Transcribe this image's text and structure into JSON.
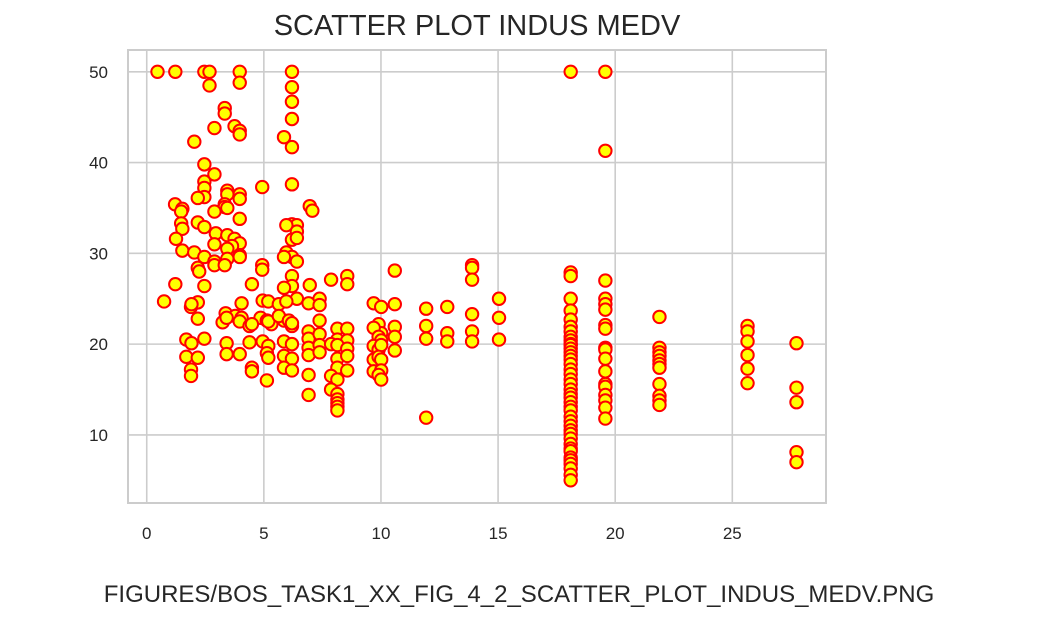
{
  "caption": "FIGURES/BOS_TASK1_XX_FIG_4_2_SCATTER_PLOT_INDUS_MEDV.PNG",
  "colors": {
    "marker_fill": "#ffff00",
    "marker_edge": "#ff0000",
    "grid": "#cccccc",
    "frame": "#cccccc",
    "text": "#262626"
  },
  "chart_data": {
    "type": "scatter",
    "title": "SCATTER PLOT INDUS MEDV",
    "xlabel": "",
    "ylabel": "",
    "xlim": [
      -0.8,
      29.0
    ],
    "ylim": [
      2.5,
      52.4
    ],
    "xticks": [
      0,
      5,
      10,
      15,
      20,
      25
    ],
    "yticks": [
      10,
      20,
      30,
      40,
      50
    ],
    "xtick_labels": [
      "0",
      "5",
      "10",
      "15",
      "20",
      "25"
    ],
    "ytick_labels": [
      "10",
      "20",
      "30",
      "40",
      "50"
    ],
    "grid": true,
    "legend": "none",
    "points": [
      [
        0.46,
        50.0
      ],
      [
        1.22,
        50.0
      ],
      [
        2.46,
        50.0
      ],
      [
        2.68,
        50.0
      ],
      [
        3.97,
        50.0
      ],
      [
        6.2,
        50.0
      ],
      [
        18.1,
        50.0
      ],
      [
        19.58,
        50.0
      ],
      [
        2.68,
        48.5
      ],
      [
        3.97,
        48.8
      ],
      [
        6.2,
        48.3
      ],
      [
        6.2,
        46.7
      ],
      [
        3.33,
        46.0
      ],
      [
        3.33,
        45.4
      ],
      [
        6.2,
        44.8
      ],
      [
        2.89,
        43.8
      ],
      [
        3.75,
        44.0
      ],
      [
        3.97,
        43.5
      ],
      [
        3.97,
        43.1
      ],
      [
        5.86,
        42.8
      ],
      [
        2.03,
        42.3
      ],
      [
        6.2,
        41.7
      ],
      [
        19.58,
        41.3
      ],
      [
        2.46,
        39.8
      ],
      [
        2.89,
        38.7
      ],
      [
        2.46,
        37.9
      ],
      [
        6.2,
        37.6
      ],
      [
        4.93,
        37.3
      ],
      [
        2.46,
        37.2
      ],
      [
        3.44,
        36.9
      ],
      [
        3.44,
        36.5
      ],
      [
        3.97,
        36.5
      ],
      [
        2.46,
        36.2
      ],
      [
        2.18,
        36.1
      ],
      [
        3.97,
        36.0
      ],
      [
        1.21,
        35.4
      ],
      [
        3.33,
        35.4
      ],
      [
        3.33,
        35.1
      ],
      [
        3.44,
        35.0
      ],
      [
        6.96,
        35.2
      ],
      [
        7.07,
        34.7
      ],
      [
        1.52,
        34.9
      ],
      [
        2.89,
        34.6
      ],
      [
        1.47,
        34.6
      ],
      [
        3.97,
        33.8
      ],
      [
        1.47,
        33.3
      ],
      [
        6.2,
        33.2
      ],
      [
        2.18,
        33.4
      ],
      [
        6.41,
        33.1
      ],
      [
        5.96,
        33.1
      ],
      [
        2.46,
        32.9
      ],
      [
        1.52,
        32.7
      ],
      [
        6.41,
        32.4
      ],
      [
        2.95,
        32.2
      ],
      [
        3.44,
        32.0
      ],
      [
        3.75,
        31.6
      ],
      [
        1.25,
        31.6
      ],
      [
        6.2,
        31.5
      ],
      [
        3.97,
        31.1
      ],
      [
        2.89,
        31.0
      ],
      [
        6.41,
        31.7
      ],
      [
        3.64,
        30.8
      ],
      [
        3.44,
        30.5
      ],
      [
        5.96,
        30.1
      ],
      [
        1.52,
        30.3
      ],
      [
        2.03,
        30.1
      ],
      [
        3.97,
        29.8
      ],
      [
        3.97,
        29.6
      ],
      [
        6.2,
        29.6
      ],
      [
        3.44,
        29.4
      ],
      [
        2.46,
        29.6
      ],
      [
        5.86,
        29.6
      ],
      [
        2.89,
        29.1
      ],
      [
        6.41,
        29.1
      ],
      [
        2.89,
        28.7
      ],
      [
        3.33,
        28.7
      ],
      [
        4.93,
        28.7
      ],
      [
        2.18,
        28.4
      ],
      [
        4.93,
        28.2
      ],
      [
        2.24,
        28.0
      ],
      [
        10.59,
        28.1
      ],
      [
        13.89,
        28.7
      ],
      [
        13.89,
        28.4
      ],
      [
        18.1,
        27.9
      ],
      [
        18.1,
        27.5
      ],
      [
        1.22,
        26.6
      ],
      [
        2.46,
        26.4
      ],
      [
        4.49,
        26.6
      ],
      [
        6.2,
        27.5
      ],
      [
        7.87,
        27.1
      ],
      [
        8.56,
        27.5
      ],
      [
        8.56,
        26.6
      ],
      [
        19.58,
        27.0
      ],
      [
        6.96,
        26.5
      ],
      [
        6.2,
        26.4
      ],
      [
        5.86,
        26.2
      ],
      [
        6.41,
        25.0
      ],
      [
        7.38,
        25.0
      ],
      [
        9.69,
        24.5
      ],
      [
        13.89,
        27.1
      ],
      [
        15.04,
        25.0
      ],
      [
        0.74,
        24.7
      ],
      [
        1.89,
        24.1
      ],
      [
        2.18,
        24.6
      ],
      [
        4.05,
        24.5
      ],
      [
        4.95,
        24.8
      ],
      [
        5.19,
        24.7
      ],
      [
        5.64,
        24.4
      ],
      [
        5.96,
        24.7
      ],
      [
        6.91,
        24.5
      ],
      [
        7.38,
        24.3
      ],
      [
        10.59,
        24.4
      ],
      [
        10.01,
        24.1
      ],
      [
        11.93,
        23.9
      ],
      [
        12.83,
        24.1
      ],
      [
        13.89,
        23.3
      ],
      [
        15.04,
        22.9
      ],
      [
        18.1,
        25.0
      ],
      [
        18.1,
        23.7
      ],
      [
        19.58,
        25.0
      ],
      [
        19.58,
        24.4
      ],
      [
        19.58,
        23.8
      ],
      [
        21.89,
        23.0
      ],
      [
        25.65,
        22.0
      ],
      [
        25.65,
        21.4
      ],
      [
        27.74,
        20.1
      ],
      [
        1.91,
        24.4
      ],
      [
        3.37,
        23.4
      ],
      [
        3.78,
        23.1
      ],
      [
        4.05,
        22.9
      ],
      [
        4.86,
        22.9
      ],
      [
        5.13,
        22.6
      ],
      [
        5.32,
        22.2
      ],
      [
        5.86,
        22.6
      ],
      [
        6.2,
        22.0
      ],
      [
        6.91,
        21.4
      ],
      [
        7.38,
        22.6
      ],
      [
        8.14,
        21.7
      ],
      [
        8.56,
        21.7
      ],
      [
        9.9,
        22.2
      ],
      [
        10.01,
        21.2
      ],
      [
        10.59,
        21.9
      ],
      [
        11.93,
        22.0
      ],
      [
        12.83,
        21.2
      ],
      [
        13.89,
        21.4
      ],
      [
        15.04,
        20.5
      ],
      [
        18.1,
        22.7
      ],
      [
        18.1,
        21.9
      ],
      [
        18.1,
        21.4
      ],
      [
        18.1,
        20.8
      ],
      [
        19.58,
        22.1
      ],
      [
        19.58,
        21.7
      ],
      [
        21.89,
        19.6
      ],
      [
        21.89,
        19.1
      ],
      [
        25.65,
        20.3
      ],
      [
        2.18,
        22.8
      ],
      [
        3.24,
        22.4
      ],
      [
        3.41,
        22.9
      ],
      [
        3.97,
        22.5
      ],
      [
        4.39,
        22.0
      ],
      [
        4.49,
        22.2
      ],
      [
        5.13,
        22.6
      ],
      [
        5.19,
        22.5
      ],
      [
        5.64,
        23.1
      ],
      [
        6.07,
        22.6
      ],
      [
        6.2,
        22.3
      ],
      [
        6.91,
        20.6
      ],
      [
        7.38,
        21.1
      ],
      [
        8.14,
        20.5
      ],
      [
        8.56,
        20.4
      ],
      [
        9.69,
        21.8
      ],
      [
        9.9,
        20.8
      ],
      [
        10.01,
        20.4
      ],
      [
        10.59,
        20.8
      ],
      [
        11.93,
        20.6
      ],
      [
        12.83,
        20.3
      ],
      [
        13.89,
        20.3
      ],
      [
        18.1,
        20.4
      ],
      [
        18.1,
        20.0
      ],
      [
        19.58,
        19.6
      ],
      [
        21.89,
        18.7
      ],
      [
        1.69,
        20.5
      ],
      [
        1.91,
        20.1
      ],
      [
        2.46,
        20.6
      ],
      [
        3.41,
        20.1
      ],
      [
        4.39,
        20.2
      ],
      [
        4.95,
        20.3
      ],
      [
        5.19,
        19.8
      ],
      [
        5.86,
        20.3
      ],
      [
        6.2,
        20.0
      ],
      [
        6.91,
        19.6
      ],
      [
        7.38,
        19.9
      ],
      [
        7.87,
        20.0
      ],
      [
        8.14,
        19.9
      ],
      [
        8.56,
        19.5
      ],
      [
        9.69,
        19.8
      ],
      [
        9.9,
        19.4
      ],
      [
        10.01,
        19.9
      ],
      [
        10.59,
        19.3
      ],
      [
        18.1,
        19.9
      ],
      [
        18.1,
        19.5
      ],
      [
        18.1,
        19.1
      ],
      [
        19.58,
        19.4
      ],
      [
        21.89,
        18.2
      ],
      [
        25.65,
        18.8
      ],
      [
        1.69,
        18.6
      ],
      [
        2.18,
        18.5
      ],
      [
        3.41,
        18.9
      ],
      [
        3.97,
        18.9
      ],
      [
        5.13,
        19.0
      ],
      [
        5.19,
        18.5
      ],
      [
        5.86,
        18.7
      ],
      [
        6.2,
        18.4
      ],
      [
        6.91,
        18.8
      ],
      [
        7.38,
        19.1
      ],
      [
        8.14,
        18.4
      ],
      [
        8.56,
        18.7
      ],
      [
        9.69,
        18.3
      ],
      [
        9.9,
        18.6
      ],
      [
        10.01,
        18.3
      ],
      [
        18.1,
        18.7
      ],
      [
        18.1,
        18.3
      ],
      [
        19.58,
        18.4
      ],
      [
        21.89,
        17.8
      ],
      [
        25.65,
        17.3
      ],
      [
        1.89,
        17.2
      ],
      [
        4.49,
        17.4
      ],
      [
        5.86,
        17.4
      ],
      [
        6.2,
        17.1
      ],
      [
        6.91,
        16.6
      ],
      [
        8.14,
        17.4
      ],
      [
        8.56,
        17.1
      ],
      [
        9.69,
        17.0
      ],
      [
        10.01,
        17.1
      ],
      [
        18.1,
        17.8
      ],
      [
        18.1,
        17.2
      ],
      [
        18.1,
        16.7
      ],
      [
        19.58,
        17.0
      ],
      [
        21.89,
        17.4
      ],
      [
        1.89,
        16.5
      ],
      [
        4.49,
        17.0
      ],
      [
        5.13,
        16.0
      ],
      [
        7.87,
        16.5
      ],
      [
        8.14,
        16.1
      ],
      [
        9.9,
        16.6
      ],
      [
        10.01,
        16.1
      ],
      [
        18.1,
        16.1
      ],
      [
        18.1,
        15.6
      ],
      [
        19.58,
        15.6
      ],
      [
        19.58,
        15.3
      ],
      [
        21.89,
        15.6
      ],
      [
        25.65,
        15.7
      ],
      [
        27.74,
        15.2
      ],
      [
        7.87,
        15.0
      ],
      [
        6.91,
        14.4
      ],
      [
        8.14,
        14.5
      ],
      [
        8.14,
        13.9
      ],
      [
        8.14,
        13.5
      ],
      [
        8.14,
        13.1
      ],
      [
        8.14,
        12.7
      ],
      [
        18.1,
        15.0
      ],
      [
        18.1,
        14.5
      ],
      [
        18.1,
        14.1
      ],
      [
        18.1,
        13.6
      ],
      [
        18.1,
        13.1
      ],
      [
        18.1,
        12.7
      ],
      [
        19.58,
        14.4
      ],
      [
        19.58,
        13.8
      ],
      [
        19.58,
        13.0
      ],
      [
        21.89,
        14.3
      ],
      [
        21.89,
        13.8
      ],
      [
        21.89,
        13.3
      ],
      [
        27.74,
        13.6
      ],
      [
        11.93,
        11.9
      ],
      [
        18.1,
        12.0
      ],
      [
        18.1,
        11.5
      ],
      [
        18.1,
        11.0
      ],
      [
        18.1,
        10.5
      ],
      [
        18.1,
        10.1
      ],
      [
        18.1,
        9.6
      ],
      [
        18.1,
        9.0
      ],
      [
        18.1,
        8.5
      ],
      [
        18.1,
        8.2
      ],
      [
        18.1,
        7.5
      ],
      [
        18.1,
        7.2
      ],
      [
        18.1,
        6.8
      ],
      [
        18.1,
        6.3
      ],
      [
        18.1,
        5.6
      ],
      [
        18.1,
        5.0
      ],
      [
        19.58,
        11.8
      ],
      [
        27.74,
        8.1
      ],
      [
        27.74,
        7.0
      ]
    ]
  }
}
